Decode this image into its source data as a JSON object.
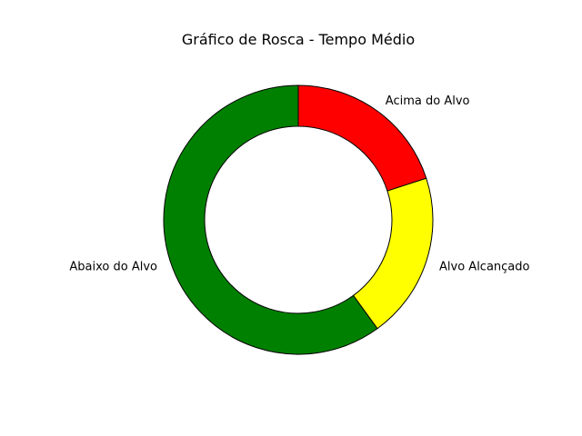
{
  "chart_data": {
    "type": "pie",
    "style": "donut",
    "title": "Gráfico de Rosca - Tempo Médio",
    "categories": [
      "Acima do Alvo",
      "Alvo Alcançado",
      "Abaixo do Alvo"
    ],
    "values": [
      20,
      20,
      60
    ],
    "colors": [
      "#ff0000",
      "#ffff00",
      "#008000"
    ],
    "edge_color": "#000000",
    "start_angle_deg": 90,
    "direction": "clockwise",
    "legend": "none"
  }
}
